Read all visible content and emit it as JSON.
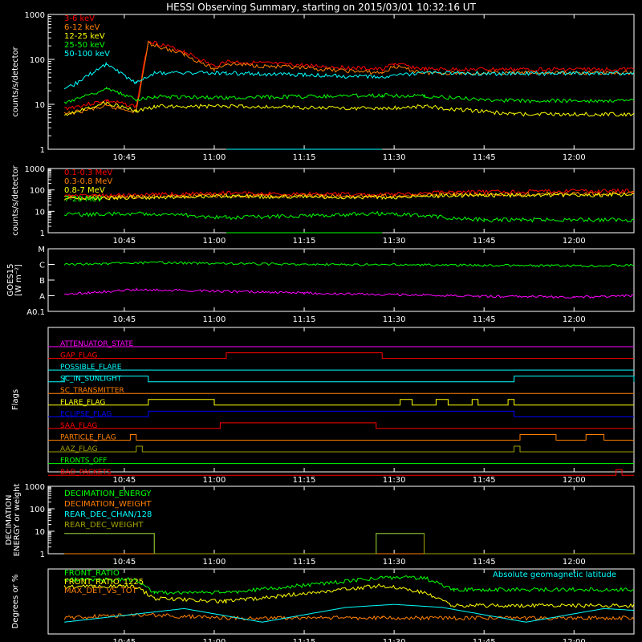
{
  "title": "HESSI Observing Summary, starting on 2015/03/01 10:32:16 UT",
  "x_ticks": [
    "10:45",
    "11:00",
    "11:15",
    "11:30",
    "11:45",
    "12:00"
  ],
  "colors": {
    "red": "#ff0000",
    "orange": "#ff7f00",
    "yellow": "#ffff00",
    "green": "#00ff00",
    "cyan": "#00ffff",
    "magenta": "#ff00ff",
    "blue": "#0000ff",
    "olive": "#a0a000",
    "white": "#ffffff"
  },
  "chart_data": [
    {
      "type": "line",
      "ylabel": "counts/s/detector",
      "yscale": "log",
      "ylim": [
        1,
        1000
      ],
      "y_ticks": [
        "1",
        "10",
        "100",
        "1000"
      ],
      "x_unit": "UT",
      "gaps_no_data": [
        [
          "11:02",
          "11:28"
        ]
      ],
      "series": [
        {
          "name": "3-6 keV",
          "color": "red",
          "time": [
            "10:35",
            "10:42",
            "10:47",
            "10:49",
            "10:55",
            "11:00",
            "11:02",
            "11:28",
            "11:30",
            "11:35",
            "11:50",
            "12:10"
          ],
          "values": [
            8,
            12,
            9,
            260,
            150,
            70,
            90,
            60,
            80,
            60,
            60,
            60
          ]
        },
        {
          "name": "6-12 keV",
          "color": "orange",
          "time": [
            "10:35",
            "10:42",
            "10:47",
            "10:49",
            "10:55",
            "11:00",
            "11:02",
            "11:28",
            "11:30",
            "11:35",
            "11:50",
            "12:10"
          ],
          "values": [
            6,
            9,
            7,
            230,
            130,
            60,
            80,
            50,
            70,
            50,
            50,
            50
          ]
        },
        {
          "name": "12-25 keV",
          "color": "yellow",
          "time": [
            "10:35",
            "10:42",
            "10:47",
            "10:50",
            "11:02",
            "11:28",
            "11:35",
            "11:50",
            "12:10"
          ],
          "values": [
            6,
            11,
            7,
            9,
            9,
            8,
            9,
            6,
            6
          ]
        },
        {
          "name": "25-50 keV",
          "color": "green",
          "time": [
            "10:35",
            "10:42",
            "10:47",
            "10:50",
            "11:02",
            "11:28",
            "11:35",
            "11:50",
            "12:10"
          ],
          "values": [
            11,
            22,
            13,
            15,
            14,
            16,
            15,
            12,
            12
          ]
        },
        {
          "name": "50-100 keV",
          "color": "cyan",
          "time": [
            "10:35",
            "10:42",
            "10:47",
            "10:50",
            "11:02",
            "11:28",
            "11:35",
            "11:50",
            "12:10"
          ],
          "values": [
            20,
            80,
            30,
            50,
            50,
            40,
            50,
            48,
            50
          ]
        }
      ]
    },
    {
      "type": "line",
      "ylabel": "counts/s/detector",
      "yscale": "log",
      "ylim": [
        1,
        1000
      ],
      "y_ticks": [
        "1",
        "10",
        "100",
        "1000"
      ],
      "gaps_no_data": [
        [
          "11:02",
          "11:28"
        ]
      ],
      "series": [
        {
          "name": "0.1-0.3 MeV",
          "color": "red",
          "time": [
            "10:35",
            "10:50",
            "11:02",
            "11:28",
            "11:40",
            "12:10"
          ],
          "values": [
            50,
            60,
            70,
            60,
            80,
            90
          ]
        },
        {
          "name": "0.3-0.8 MeV",
          "color": "orange",
          "time": [
            "10:35",
            "10:50",
            "11:02",
            "11:28",
            "11:40",
            "12:10"
          ],
          "values": [
            45,
            50,
            55,
            50,
            60,
            70
          ]
        },
        {
          "name": "0.8-7 MeV",
          "color": "yellow",
          "time": [
            "10:35",
            "10:50",
            "11:02",
            "11:28",
            "11:40",
            "12:10"
          ],
          "values": [
            40,
            45,
            50,
            45,
            55,
            60
          ]
        },
        {
          "name": "7-20 MeV",
          "color": "green",
          "time": [
            "10:35",
            "10:50",
            "11:02",
            "11:28",
            "11:45",
            "12:10"
          ],
          "values": [
            7,
            8,
            5,
            8,
            4,
            4
          ]
        }
      ]
    },
    {
      "type": "line",
      "ylabel": "GOES15 [W m⁻²]",
      "y_ticks": [
        "A0.1",
        "A",
        "B",
        "C",
        "M"
      ],
      "series": [
        {
          "name": "",
          "color": "green",
          "time": [
            "10:35",
            "10:50",
            "11:15",
            "11:40",
            "12:00",
            "12:10"
          ],
          "values": [
            "C1.0",
            "C1.3",
            "C1.0",
            "C0.9",
            "C0.8",
            "C0.9"
          ]
        },
        {
          "name": "",
          "color": "magenta",
          "time": [
            "10:35",
            "10:47",
            "11:15",
            "11:40",
            "12:00",
            "12:10"
          ],
          "values": [
            "A1.2",
            "A2.5",
            "A1.5",
            "A1.0",
            "A0.8",
            "A1.0"
          ]
        }
      ]
    },
    {
      "type": "timeline",
      "ylabel": "Flags",
      "flags": [
        {
          "name": "ATTENUATOR_STATE",
          "color": "magenta",
          "on": []
        },
        {
          "name": "GAP_FLAG",
          "color": "red",
          "on": [
            [
              "11:02",
              "11:28"
            ]
          ]
        },
        {
          "name": "POSSIBLE_FLARE",
          "color": "cyan",
          "on": []
        },
        {
          "name": "SC_IN_SUNLIGHT",
          "color": "cyan",
          "on": [
            [
              "10:35",
              "10:49"
            ],
            [
              "11:50",
              "12:10"
            ]
          ]
        },
        {
          "name": "SC_TRANSMITTER",
          "color": "orange",
          "on": []
        },
        {
          "name": "FLARE_FLAG",
          "color": "yellow",
          "on": [
            [
              "10:49",
              "11:00"
            ],
            [
              "11:31",
              "11:33"
            ],
            [
              "11:37",
              "11:39"
            ],
            [
              "11:43",
              "11:44"
            ],
            [
              "11:49",
              "11:50"
            ]
          ]
        },
        {
          "name": "ECLIPSE_FLAG",
          "color": "blue",
          "on": [
            [
              "10:49",
              "11:50"
            ]
          ]
        },
        {
          "name": "SAA_FLAG",
          "color": "red",
          "on": [
            [
              "11:01",
              "11:27"
            ]
          ]
        },
        {
          "name": "PARTICLE_FLAG",
          "color": "orange",
          "on": [
            [
              "10:46",
              "10:47"
            ],
            [
              "11:51",
              "11:57"
            ],
            [
              "12:02",
              "12:05"
            ]
          ]
        },
        {
          "name": "AAZ_FLAG",
          "color": "olive",
          "on": [
            [
              "10:47",
              "10:48"
            ],
            [
              "11:50",
              "11:51"
            ]
          ]
        },
        {
          "name": "FRONTS_OFF",
          "color": "green",
          "on": []
        },
        {
          "name": "BAD_PACKETS",
          "color": "red",
          "on": [
            [
              "12:07",
              "12:08"
            ]
          ]
        }
      ]
    },
    {
      "type": "line",
      "ylabel": "DECIMATION ENERGY or weight",
      "yscale": "log",
      "ylim": [
        1,
        1000
      ],
      "y_ticks": [
        "1",
        "10",
        "100",
        "1000"
      ],
      "series": [
        {
          "name": "DECIMATION_ENERGY",
          "color": "green",
          "time": [
            "10:35",
            "12:10"
          ],
          "values": [
            1,
            1
          ]
        },
        {
          "name": "DECIMATION_WEIGHT",
          "color": "orange",
          "time": [
            "10:35",
            "12:10"
          ],
          "values": [
            1,
            1
          ]
        },
        {
          "name": "REAR_DEC_CHAN/128",
          "color": "cyan",
          "time": [
            "10:35",
            "10:50",
            "10:50",
            "11:27",
            "11:27",
            "11:35",
            "11:35",
            "12:10"
          ],
          "values": [
            8,
            8,
            1,
            1,
            8,
            8,
            1,
            1
          ]
        },
        {
          "name": "REAR_DEC_WEIGHT",
          "color": "olive",
          "time": [
            "10:35",
            "10:50",
            "10:50",
            "11:27",
            "11:27",
            "11:35",
            "11:35",
            "12:10"
          ],
          "values": [
            8,
            8,
            1,
            1,
            8,
            8,
            1,
            1
          ]
        }
      ]
    },
    {
      "type": "line",
      "ylabel": "Degrees or %",
      "series": [
        {
          "name": "FRONT_RATIO",
          "color": "green",
          "time": [
            "10:35",
            "10:47",
            "10:50",
            "11:02",
            "11:28",
            "11:35",
            "11:40",
            "12:10"
          ],
          "values": [
            92,
            92,
            70,
            70,
            95,
            95,
            75,
            75
          ]
        },
        {
          "name": "FRONT_RATIO_1225",
          "color": "yellow",
          "time": [
            "10:35",
            "10:47",
            "10:50",
            "11:02",
            "11:28",
            "11:35",
            "11:40",
            "12:10"
          ],
          "values": [
            80,
            80,
            60,
            55,
            82,
            70,
            48,
            48
          ]
        },
        {
          "name": "MAX_DET_VS_TOT",
          "color": "orange",
          "time": [
            "10:35",
            "10:47",
            "11:02",
            "11:28",
            "12:10"
          ],
          "values": [
            27,
            33,
            27,
            27,
            27
          ]
        },
        {
          "name": "Absolute geomagnetic latitude",
          "color": "cyan",
          "time": [
            "10:35",
            "10:55",
            "11:08",
            "11:22",
            "11:30",
            "11:38",
            "11:52",
            "12:05",
            "12:10"
          ],
          "values": [
            20,
            43,
            20,
            45,
            50,
            45,
            20,
            43,
            40
          ]
        }
      ]
    }
  ]
}
